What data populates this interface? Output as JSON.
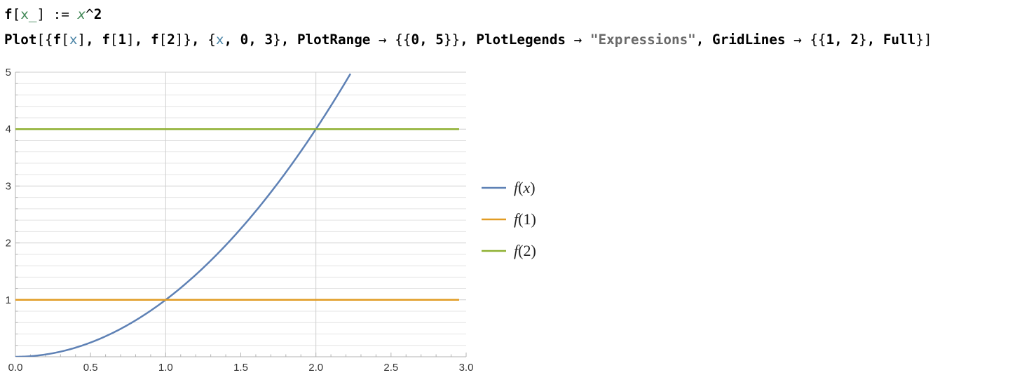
{
  "cell": {
    "line1": [
      {
        "t": "f",
        "c": "plain"
      },
      {
        "t": "[",
        "c": "op"
      },
      {
        "t": "x_",
        "c": "pat"
      },
      {
        "t": "]",
        "c": "op"
      },
      {
        "t": " := ",
        "c": "op"
      },
      {
        "t": "x",
        "c": "var"
      },
      {
        "t": "^",
        "c": "op"
      },
      {
        "t": "2",
        "c": "plain"
      }
    ],
    "line2": [
      {
        "t": "Plot",
        "c": "plain"
      },
      {
        "t": "[{",
        "c": "op"
      },
      {
        "t": "f",
        "c": "plain"
      },
      {
        "t": "[",
        "c": "op"
      },
      {
        "t": "x",
        "c": "iter"
      },
      {
        "t": "]",
        "c": "op"
      },
      {
        "t": ", ",
        "c": "plain"
      },
      {
        "t": "f",
        "c": "plain"
      },
      {
        "t": "[",
        "c": "op"
      },
      {
        "t": "1",
        "c": "plain"
      },
      {
        "t": "]",
        "c": "op"
      },
      {
        "t": ", ",
        "c": "plain"
      },
      {
        "t": "f",
        "c": "plain"
      },
      {
        "t": "[",
        "c": "op"
      },
      {
        "t": "2",
        "c": "plain"
      },
      {
        "t": "]}",
        "c": "op"
      },
      {
        "t": ", ",
        "c": "plain"
      },
      {
        "t": "{",
        "c": "op"
      },
      {
        "t": "x",
        "c": "iter"
      },
      {
        "t": ", 0, 3",
        "c": "plain"
      },
      {
        "t": "}",
        "c": "op"
      },
      {
        "t": ", ",
        "c": "plain"
      },
      {
        "t": "PlotRange",
        "c": "plain"
      },
      {
        "t": " → ",
        "c": "op"
      },
      {
        "t": "{{",
        "c": "op"
      },
      {
        "t": "0, 5",
        "c": "plain"
      },
      {
        "t": "}}",
        "c": "op"
      },
      {
        "t": ", ",
        "c": "plain"
      },
      {
        "t": "PlotLegends",
        "c": "plain"
      },
      {
        "t": " → ",
        "c": "op"
      },
      {
        "t": "\"Expressions\"",
        "c": "str"
      },
      {
        "t": ", ",
        "c": "plain"
      },
      {
        "t": "GridLines",
        "c": "plain"
      },
      {
        "t": " → ",
        "c": "op"
      },
      {
        "t": "{{",
        "c": "op"
      },
      {
        "t": "1, 2",
        "c": "plain"
      },
      {
        "t": "}",
        "c": "op"
      },
      {
        "t": ", ",
        "c": "plain"
      },
      {
        "t": "Full",
        "c": "plain"
      },
      {
        "t": "}]",
        "c": "op"
      }
    ]
  },
  "chart_data": {
    "type": "line",
    "title": "",
    "xlabel": "",
    "ylabel": "",
    "xlim": [
      0,
      3
    ],
    "ylim": [
      0,
      5
    ],
    "x_ticks": [
      "0.0",
      "0.5",
      "1.0",
      "1.5",
      "2.0",
      "2.5",
      "3.0"
    ],
    "y_ticks": [
      "1",
      "2",
      "3",
      "4",
      "5"
    ],
    "gridlines": {
      "x": [
        1,
        2
      ],
      "y": "full"
    },
    "legend_position": "right",
    "series": [
      {
        "name": "f(x)",
        "formula": "x^2",
        "color": "#5e81b5",
        "x": [
          0,
          0.25,
          0.5,
          0.75,
          1.0,
          1.25,
          1.5,
          1.75,
          2.0,
          2.236
        ],
        "y": [
          0,
          0.0625,
          0.25,
          0.5625,
          1.0,
          1.5625,
          2.25,
          3.0625,
          4.0,
          5.0
        ]
      },
      {
        "name": "f(1)",
        "color": "#e19c24",
        "x": [
          0,
          3
        ],
        "y": [
          1,
          1
        ]
      },
      {
        "name": "f(2)",
        "color": "#8fb032",
        "x": [
          0,
          3
        ],
        "y": [
          4,
          4
        ]
      }
    ]
  }
}
